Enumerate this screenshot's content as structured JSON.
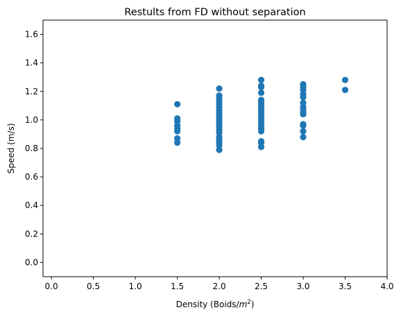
{
  "chart_data": {
    "type": "scatter",
    "title": "Restults from FD without separation",
    "xlabel_prefix": "Density (Boids/",
    "xlabel_math_base": "m",
    "xlabel_math_sup": "2",
    "xlabel_suffix": ")",
    "ylabel": "Speed (m/s)",
    "xlim": [
      -0.1,
      4.0
    ],
    "ylim": [
      -0.1,
      1.7
    ],
    "xticks": [
      "0.0",
      "0.5",
      "1.0",
      "1.5",
      "2.0",
      "2.5",
      "3.0",
      "3.5",
      "4.0"
    ],
    "yticks": [
      "0.0",
      "0.2",
      "0.4",
      "0.6",
      "0.8",
      "1.0",
      "1.2",
      "1.4",
      "1.6"
    ],
    "grid": false,
    "marker_color": "#1f77b4",
    "points": [
      [
        1.5,
        1.11
      ],
      [
        1.5,
        1.01
      ],
      [
        1.5,
        0.99
      ],
      [
        1.5,
        0.96
      ],
      [
        1.5,
        0.94
      ],
      [
        1.5,
        0.92
      ],
      [
        1.5,
        0.87
      ],
      [
        1.5,
        0.84
      ],
      [
        2.0,
        1.22
      ],
      [
        2.0,
        1.17
      ],
      [
        2.0,
        1.15
      ],
      [
        2.0,
        1.13
      ],
      [
        2.0,
        1.11
      ],
      [
        2.0,
        1.09
      ],
      [
        2.0,
        1.07
      ],
      [
        2.0,
        1.05
      ],
      [
        2.0,
        1.03
      ],
      [
        2.0,
        1.01
      ],
      [
        2.0,
        0.99
      ],
      [
        2.0,
        0.97
      ],
      [
        2.0,
        0.95
      ],
      [
        2.0,
        0.93
      ],
      [
        2.0,
        0.91
      ],
      [
        2.0,
        0.88
      ],
      [
        2.0,
        0.86
      ],
      [
        2.0,
        0.84
      ],
      [
        2.0,
        0.82
      ],
      [
        2.0,
        0.79
      ],
      [
        2.5,
        1.28
      ],
      [
        2.5,
        1.24
      ],
      [
        2.5,
        1.23
      ],
      [
        2.5,
        1.19
      ],
      [
        2.5,
        1.14
      ],
      [
        2.5,
        1.12
      ],
      [
        2.5,
        1.1
      ],
      [
        2.5,
        1.08
      ],
      [
        2.5,
        1.06
      ],
      [
        2.5,
        1.04
      ],
      [
        2.5,
        1.02
      ],
      [
        2.5,
        1.0
      ],
      [
        2.5,
        0.98
      ],
      [
        2.5,
        0.96
      ],
      [
        2.5,
        0.94
      ],
      [
        2.5,
        0.92
      ],
      [
        2.5,
        0.85
      ],
      [
        2.5,
        0.84
      ],
      [
        2.5,
        0.81
      ],
      [
        3.0,
        1.25
      ],
      [
        3.0,
        1.23
      ],
      [
        3.0,
        1.21
      ],
      [
        3.0,
        1.18
      ],
      [
        3.0,
        1.16
      ],
      [
        3.0,
        1.12
      ],
      [
        3.0,
        1.09
      ],
      [
        3.0,
        1.07
      ],
      [
        3.0,
        1.05
      ],
      [
        3.0,
        1.04
      ],
      [
        3.0,
        0.97
      ],
      [
        3.0,
        0.96
      ],
      [
        3.0,
        0.92
      ],
      [
        3.0,
        0.88
      ],
      [
        3.5,
        1.28
      ],
      [
        3.5,
        1.21
      ]
    ]
  }
}
